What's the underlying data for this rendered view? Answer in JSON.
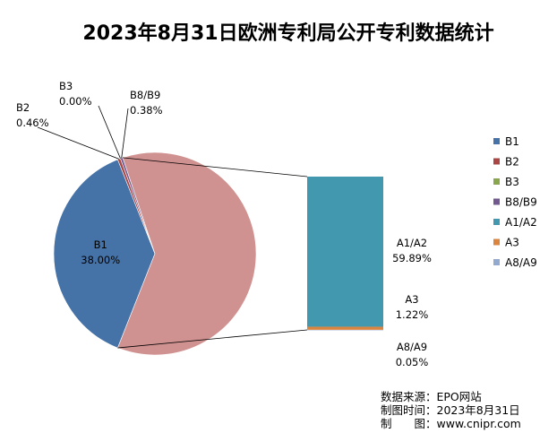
{
  "chart_data": {
    "type": "pie",
    "title": "2023年8月31日欧洲专利局公开专利数据统计",
    "slices": [
      {
        "name": "B1",
        "value": 38.0,
        "label": "38.00%",
        "color": "#4572A7"
      },
      {
        "name": "B2",
        "value": 0.46,
        "label": "0.46%",
        "color": "#AA4643"
      },
      {
        "name": "B3",
        "value": 0.0,
        "label": "0.00%",
        "color": "#89A54E"
      },
      {
        "name": "B8/B9",
        "value": 0.38,
        "label": "0.38%",
        "color": "#71588F"
      },
      {
        "name": "A1/A2",
        "value": 59.89,
        "label": "59.89%",
        "color": "#4198AF"
      },
      {
        "name": "A3",
        "value": 1.22,
        "label": "1.22%",
        "color": "#DB843D"
      },
      {
        "name": "A8/A9",
        "value": 0.05,
        "label": "0.05%",
        "color": "#93A9CF"
      }
    ],
    "other_slice_color": "#D09290",
    "legend_position": "right"
  },
  "footer": {
    "source": "数据来源：EPO网站",
    "date": "制图时间：2023年8月31日",
    "maker": "制　　图：www.cnipr.com"
  }
}
